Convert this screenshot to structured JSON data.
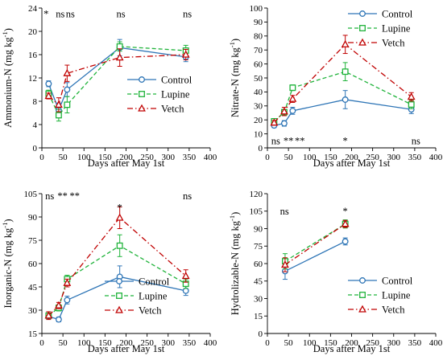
{
  "colors": {
    "Control": "#2e75b6",
    "Lupine": "#1fb33a",
    "Vetch": "#c00000"
  },
  "chart_data": [
    {
      "type": "line",
      "xlabel": "Days after May 1st",
      "ylabel": "Ammonium-N  (mg kg",
      "ylabel_sup": "-1",
      "ylabel_tail": ")",
      "xlim": [
        0,
        400
      ],
      "ylim": [
        0,
        24
      ],
      "xticks": [
        0,
        50,
        100,
        150,
        200,
        250,
        300,
        350,
        400
      ],
      "yticks": [
        0,
        4,
        8,
        12,
        16,
        20,
        24
      ],
      "legend_position": "center-right",
      "series": [
        {
          "name": "Control",
          "marker": "circle",
          "line": "solid",
          "x": [
            16,
            40,
            60,
            185,
            342
          ],
          "y": [
            11.0,
            6.5,
            10.0,
            17.2,
            15.6
          ],
          "err": [
            0.5,
            1.2,
            1.2,
            1.4,
            0.8
          ]
        },
        {
          "name": "Lupine",
          "marker": "square",
          "line": "dashed",
          "x": [
            16,
            40,
            60,
            185,
            342
          ],
          "y": [
            9.3,
            5.6,
            7.4,
            17.4,
            16.7
          ],
          "err": [
            0.6,
            1.0,
            1.4,
            0.8,
            0.9
          ]
        },
        {
          "name": "Vetch",
          "marker": "triangle",
          "line": "dashdot",
          "x": [
            16,
            40,
            60,
            185,
            342
          ],
          "y": [
            8.9,
            7.4,
            12.8,
            15.5,
            16.0
          ],
          "err": [
            0.5,
            1.2,
            1.4,
            1.5,
            0.9
          ]
        }
      ],
      "annotations": [
        {
          "text": "*",
          "x": 10,
          "y": 23.0
        },
        {
          "text": "ns",
          "x": 33,
          "y": 23.0
        },
        {
          "text": "ns",
          "x": 57,
          "y": 23.0
        },
        {
          "text": "ns",
          "x": 177,
          "y": 23.0
        },
        {
          "text": "ns",
          "x": 335,
          "y": 23.0
        }
      ]
    },
    {
      "type": "line",
      "xlabel": "Days after May 1st",
      "ylabel": "Nitrate-N  (mg kg",
      "ylabel_sup": "-1",
      "ylabel_tail": ")",
      "xlim": [
        0,
        400
      ],
      "ylim": [
        0,
        100
      ],
      "xticks": [
        0,
        50,
        100,
        150,
        200,
        250,
        300,
        350,
        400
      ],
      "yticks": [
        0,
        10,
        20,
        30,
        40,
        50,
        60,
        70,
        80,
        90,
        100
      ],
      "legend_position": "top-right",
      "series": [
        {
          "name": "Control",
          "marker": "circle",
          "line": "solid",
          "x": [
            16,
            40,
            60,
            185,
            342
          ],
          "y": [
            16.0,
            17.5,
            26.5,
            34.5,
            27.5
          ],
          "err": [
            1.5,
            2.0,
            2.5,
            6.5,
            3.0
          ]
        },
        {
          "name": "Lupine",
          "marker": "square",
          "line": "dashed",
          "x": [
            16,
            40,
            60,
            185,
            342
          ],
          "y": [
            19.0,
            25.5,
            43.0,
            54.5,
            31.0
          ],
          "err": [
            1.5,
            2.0,
            2.0,
            6.5,
            3.0
          ]
        },
        {
          "name": "Vetch",
          "marker": "triangle",
          "line": "dashdot",
          "x": [
            16,
            40,
            60,
            185,
            342
          ],
          "y": [
            18.0,
            26.0,
            35.0,
            74.0,
            36.5
          ],
          "err": [
            1.5,
            3.0,
            2.5,
            6.5,
            3.0
          ]
        }
      ],
      "annotations": [
        {
          "text": "ns",
          "x": 9,
          "y": 5.0
        },
        {
          "text": "**",
          "x": 38,
          "y": 5.0
        },
        {
          "text": "**",
          "x": 65,
          "y": 5.0
        },
        {
          "text": "*",
          "x": 185,
          "y": 5.0
        },
        {
          "text": "ns",
          "x": 342,
          "y": 5.0
        }
      ]
    },
    {
      "type": "line",
      "xlabel": "Days after May 1st",
      "ylabel": "Inorganic-N  (mg kg",
      "ylabel_sup": "-1",
      "ylabel_tail": ")",
      "xlim": [
        0,
        400
      ],
      "ylim": [
        15,
        105
      ],
      "xticks": [
        0,
        50,
        100,
        150,
        200,
        250,
        300,
        350,
        400
      ],
      "yticks": [
        15,
        30,
        45,
        60,
        75,
        90,
        105
      ],
      "legend_position": "bottom-center",
      "series": [
        {
          "name": "Control",
          "marker": "circle",
          "line": "solid",
          "x": [
            16,
            40,
            60,
            185,
            342
          ],
          "y": [
            26.0,
            24.0,
            36.5,
            51.5,
            42.5
          ],
          "err": [
            1.5,
            1.5,
            2.5,
            7.0,
            3.0
          ]
        },
        {
          "name": "Lupine",
          "marker": "square",
          "line": "dashed",
          "x": [
            16,
            40,
            60,
            185,
            342
          ],
          "y": [
            26.5,
            31.5,
            50.0,
            71.5,
            47.0
          ],
          "err": [
            1.5,
            2.0,
            2.5,
            7.0,
            3.0
          ]
        },
        {
          "name": "Vetch",
          "marker": "triangle",
          "line": "dashdot",
          "x": [
            16,
            40,
            60,
            185,
            342
          ],
          "y": [
            26.5,
            33.0,
            47.5,
            89.5,
            52.0
          ],
          "err": [
            2.5,
            2.0,
            2.5,
            7.0,
            4.0
          ]
        }
      ],
      "annotations": [
        {
          "text": "ns",
          "x": 8,
          "y": 103.5
        },
        {
          "text": "**",
          "x": 37,
          "y": 103.5
        },
        {
          "text": "**",
          "x": 66,
          "y": 103.5
        },
        {
          "text": "*",
          "x": 185,
          "y": 96.0
        },
        {
          "text": "ns",
          "x": 335,
          "y": 103.5
        }
      ]
    },
    {
      "type": "line",
      "xlabel": "Days after May 1st",
      "ylabel": "Hydrolizable-N  (mg kg",
      "ylabel_sup": "-1",
      "ylabel_tail": ")",
      "xlim": [
        0,
        400
      ],
      "ylim": [
        0,
        120
      ],
      "xticks": [
        0,
        50,
        100,
        150,
        200,
        250,
        300,
        350,
        400
      ],
      "yticks": [
        0,
        15,
        30,
        45,
        60,
        75,
        90,
        105,
        120
      ],
      "legend_position": "center-right",
      "series": [
        {
          "name": "Control",
          "marker": "circle",
          "line": "solid",
          "x": [
            42,
            185
          ],
          "y": [
            53.5,
            79.0
          ],
          "err": [
            7.0,
            3.0
          ]
        },
        {
          "name": "Lupine",
          "marker": "square",
          "line": "dashed",
          "x": [
            42,
            185
          ],
          "y": [
            62.0,
            94.0
          ],
          "err": [
            6.5,
            3.5
          ]
        },
        {
          "name": "Vetch",
          "marker": "triangle",
          "line": "dashdot",
          "x": [
            42,
            185
          ],
          "y": [
            59.0,
            94.0
          ],
          "err": [
            6.0,
            3.0
          ]
        }
      ],
      "annotations": [
        {
          "text": "ns",
          "x": 30,
          "y": 105.0
        },
        {
          "text": "*",
          "x": 185,
          "y": 105.0
        }
      ]
    }
  ]
}
